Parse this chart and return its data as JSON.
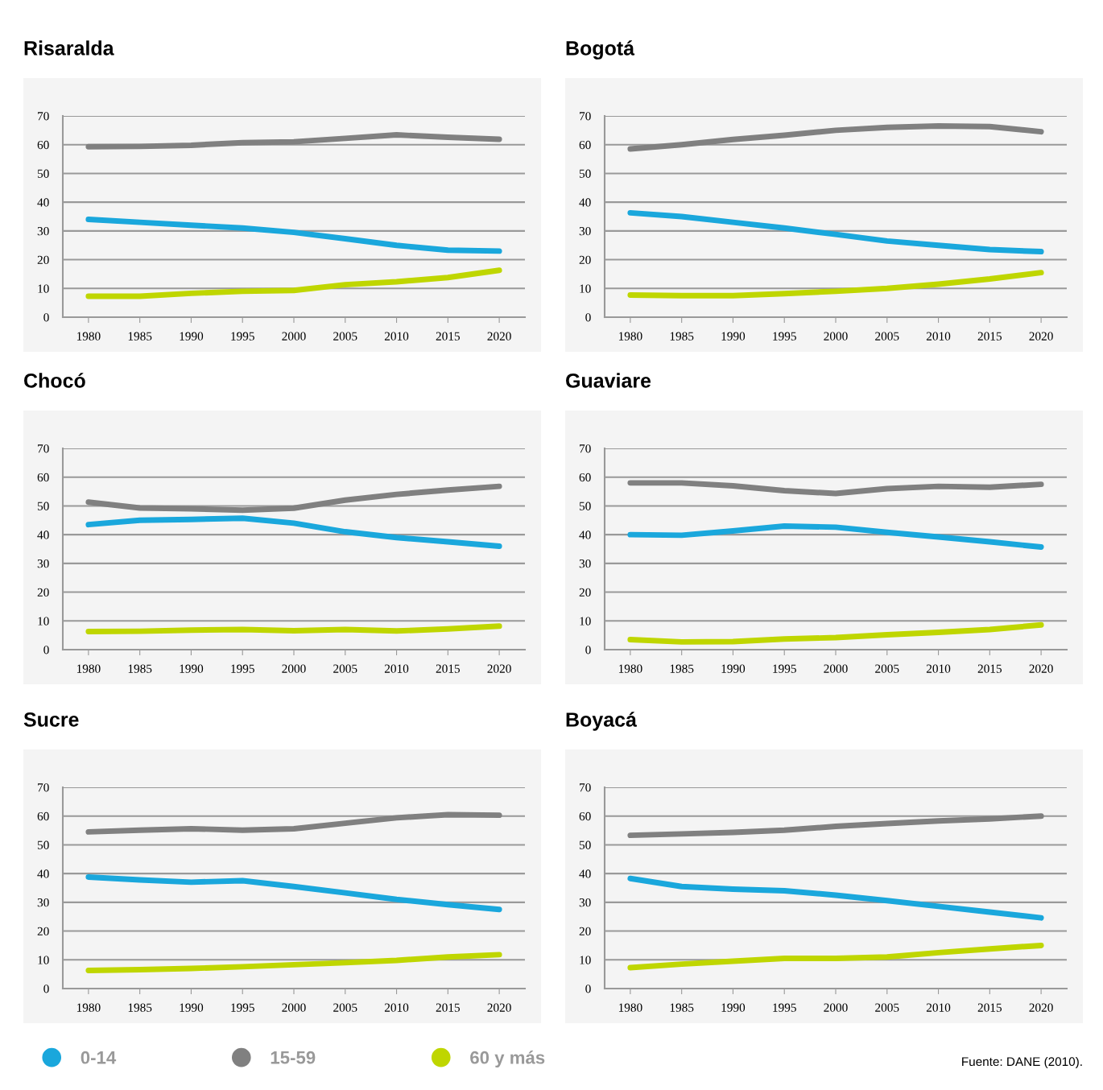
{
  "chart_data": [
    {
      "type": "line",
      "title": "Risaralda",
      "x": [
        1980,
        1985,
        1990,
        1995,
        2000,
        2005,
        2010,
        2015,
        2020
      ],
      "xlim": [
        1977.5,
        2022.5
      ],
      "xticks": [
        1980,
        1985,
        1990,
        1995,
        2000,
        2005,
        2010,
        2015,
        2020
      ],
      "ylim": [
        0,
        70
      ],
      "yticks": [
        0,
        10,
        20,
        30,
        40,
        50,
        60,
        70
      ],
      "grid": "y",
      "legend": "bottom",
      "series": [
        {
          "name": "0-14",
          "color": "#1aa7dc",
          "values": [
            34.0,
            33.0,
            32.0,
            31.0,
            29.5,
            27.3,
            25.0,
            23.3,
            23.0
          ]
        },
        {
          "name": "15-59",
          "color": "#808080",
          "values": [
            59.3,
            59.4,
            59.8,
            60.7,
            61.0,
            62.2,
            63.4,
            62.6,
            61.9
          ]
        },
        {
          "name": "60 y más",
          "color": "#bfd600",
          "values": [
            7.3,
            7.3,
            8.3,
            9.0,
            9.3,
            11.3,
            12.3,
            13.8,
            16.3
          ]
        }
      ]
    },
    {
      "type": "line",
      "title": "Bogotá",
      "x": [
        1980,
        1985,
        1990,
        1995,
        2000,
        2005,
        2010,
        2015,
        2020
      ],
      "xlim": [
        1977.5,
        2022.5
      ],
      "xticks": [
        1980,
        1985,
        1990,
        1995,
        2000,
        2005,
        2010,
        2015,
        2020
      ],
      "ylim": [
        0,
        70
      ],
      "yticks": [
        0,
        10,
        20,
        30,
        40,
        50,
        60,
        70
      ],
      "grid": "y",
      "series": [
        {
          "color": "#1aa7dc",
          "values": [
            36.3,
            35.0,
            33.0,
            31.0,
            28.8,
            26.5,
            25.0,
            23.5,
            22.8
          ]
        },
        {
          "color": "#808080",
          "values": [
            58.5,
            60.0,
            61.8,
            63.3,
            65.0,
            66.0,
            66.5,
            66.3,
            64.5
          ]
        },
        {
          "color": "#bfd600",
          "values": [
            7.7,
            7.5,
            7.5,
            8.2,
            9.0,
            10.0,
            11.5,
            13.3,
            15.5
          ]
        }
      ]
    },
    {
      "type": "line",
      "title": "Chocó",
      "x": [
        1980,
        1985,
        1990,
        1995,
        2000,
        2005,
        2010,
        2015,
        2020
      ],
      "xlim": [
        1977.5,
        2022.5
      ],
      "xticks": [
        1980,
        1985,
        1990,
        1995,
        2000,
        2005,
        2010,
        2015,
        2020
      ],
      "ylim": [
        0,
        70
      ],
      "yticks": [
        0,
        10,
        20,
        30,
        40,
        50,
        60,
        70
      ],
      "grid": "y",
      "series": [
        {
          "color": "#1aa7dc",
          "values": [
            43.5,
            45.0,
            45.3,
            45.7,
            44.0,
            41.0,
            39.0,
            37.5,
            36.0
          ]
        },
        {
          "color": "#808080",
          "values": [
            51.3,
            49.3,
            49.0,
            48.5,
            49.2,
            52.0,
            54.0,
            55.5,
            56.8
          ]
        },
        {
          "color": "#bfd600",
          "values": [
            6.3,
            6.4,
            6.8,
            7.0,
            6.6,
            7.0,
            6.5,
            7.2,
            8.2
          ]
        }
      ]
    },
    {
      "type": "line",
      "title": "Guaviare",
      "x": [
        1980,
        1985,
        1990,
        1995,
        2000,
        2005,
        2010,
        2015,
        2020
      ],
      "xlim": [
        1977.5,
        2022.5
      ],
      "xticks": [
        1980,
        1985,
        1990,
        1995,
        2000,
        2005,
        2010,
        2015,
        2020
      ],
      "ylim": [
        0,
        70
      ],
      "yticks": [
        0,
        10,
        20,
        30,
        40,
        50,
        60,
        70
      ],
      "grid": "y",
      "series": [
        {
          "color": "#1aa7dc",
          "values": [
            40.0,
            39.8,
            41.3,
            43.0,
            42.6,
            40.8,
            39.2,
            37.5,
            35.7
          ]
        },
        {
          "color": "#808080",
          "values": [
            58.0,
            58.0,
            57.0,
            55.3,
            54.3,
            56.0,
            56.8,
            56.5,
            57.5
          ]
        },
        {
          "color": "#bfd600",
          "values": [
            3.5,
            2.7,
            2.8,
            3.7,
            4.2,
            5.2,
            6.0,
            7.0,
            8.6
          ]
        }
      ]
    },
    {
      "type": "line",
      "title": "Sucre",
      "x": [
        1980,
        1985,
        1990,
        1995,
        2000,
        2005,
        2010,
        2015,
        2020
      ],
      "xlim": [
        1977.5,
        2022.5
      ],
      "xticks": [
        1980,
        1985,
        1990,
        1995,
        2000,
        2005,
        2010,
        2015,
        2020
      ],
      "ylim": [
        0,
        70
      ],
      "yticks": [
        0,
        10,
        20,
        30,
        40,
        50,
        60,
        70
      ],
      "grid": "y",
      "series": [
        {
          "color": "#1aa7dc",
          "values": [
            38.8,
            37.8,
            37.0,
            37.5,
            35.5,
            33.3,
            31.0,
            29.2,
            27.5
          ]
        },
        {
          "color": "#808080",
          "values": [
            54.5,
            55.1,
            55.6,
            55.1,
            55.6,
            57.5,
            59.4,
            60.5,
            60.3
          ]
        },
        {
          "color": "#bfd600",
          "values": [
            6.3,
            6.6,
            7.0,
            7.6,
            8.3,
            9.0,
            9.8,
            11.0,
            11.8
          ]
        }
      ]
    },
    {
      "type": "line",
      "title": "Boyacá",
      "x": [
        1980,
        1985,
        1990,
        1995,
        2000,
        2005,
        2010,
        2015,
        2020
      ],
      "xlim": [
        1977.5,
        2022.5
      ],
      "xticks": [
        1980,
        1985,
        1990,
        1995,
        2000,
        2005,
        2010,
        2015,
        2020
      ],
      "ylim": [
        0,
        70
      ],
      "yticks": [
        0,
        10,
        20,
        30,
        40,
        50,
        60,
        70
      ],
      "grid": "y",
      "annotations": [
        "Fuente: DANE (2010)."
      ],
      "series": [
        {
          "color": "#1aa7dc",
          "values": [
            38.3,
            35.5,
            34.6,
            34.0,
            32.5,
            30.6,
            28.6,
            26.6,
            24.6
          ]
        },
        {
          "color": "#808080",
          "values": [
            53.3,
            53.8,
            54.3,
            55.1,
            56.4,
            57.4,
            58.3,
            59.0,
            60.0
          ]
        },
        {
          "color": "#bfd600",
          "values": [
            7.3,
            8.5,
            9.5,
            10.5,
            10.5,
            11.0,
            12.5,
            13.8,
            15.0
          ]
        }
      ]
    }
  ]
}
